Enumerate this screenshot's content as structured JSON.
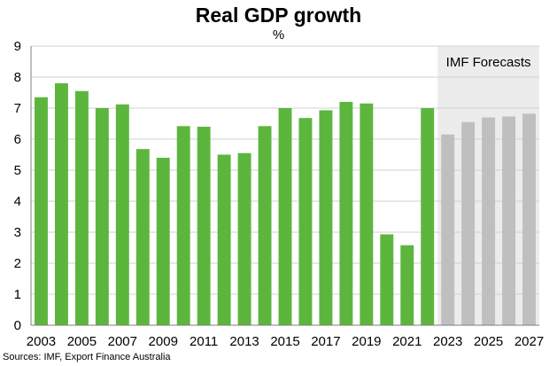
{
  "title": "Real GDP growth",
  "subtitle": "%",
  "source": "Sources: IMF, Export Finance Australia",
  "colors": {
    "actual": "#5cb63d",
    "forecast": "#bfbfbf",
    "forecast_band": "#ececec",
    "grid": "#d0d0d0"
  },
  "chart_data": {
    "type": "bar",
    "title": "Real GDP growth",
    "ylabel": "%",
    "xlabel": "",
    "ylim": [
      0,
      9
    ],
    "yticks": [
      0,
      1,
      2,
      3,
      4,
      5,
      6,
      7,
      8,
      9
    ],
    "grid": true,
    "categories": [
      2003,
      2004,
      2005,
      2006,
      2007,
      2008,
      2009,
      2010,
      2011,
      2012,
      2013,
      2014,
      2015,
      2016,
      2017,
      2018,
      2019,
      2020,
      2021,
      2022,
      2023,
      2024,
      2025,
      2026,
      2027
    ],
    "xtick_labels": [
      "2003",
      "2005",
      "2007",
      "2009",
      "2011",
      "2013",
      "2015",
      "2017",
      "2019",
      "2021",
      "2023",
      "2025",
      "2027"
    ],
    "values": [
      7.35,
      7.8,
      7.55,
      7.0,
      7.12,
      5.68,
      5.4,
      6.42,
      6.4,
      5.5,
      5.55,
      6.42,
      7.0,
      6.68,
      6.93,
      7.2,
      7.15,
      2.93,
      2.58,
      7.0,
      6.15,
      6.55,
      6.7,
      6.73,
      6.82
    ],
    "forecast_from": 2023,
    "annotation": "IMF Forecasts"
  }
}
